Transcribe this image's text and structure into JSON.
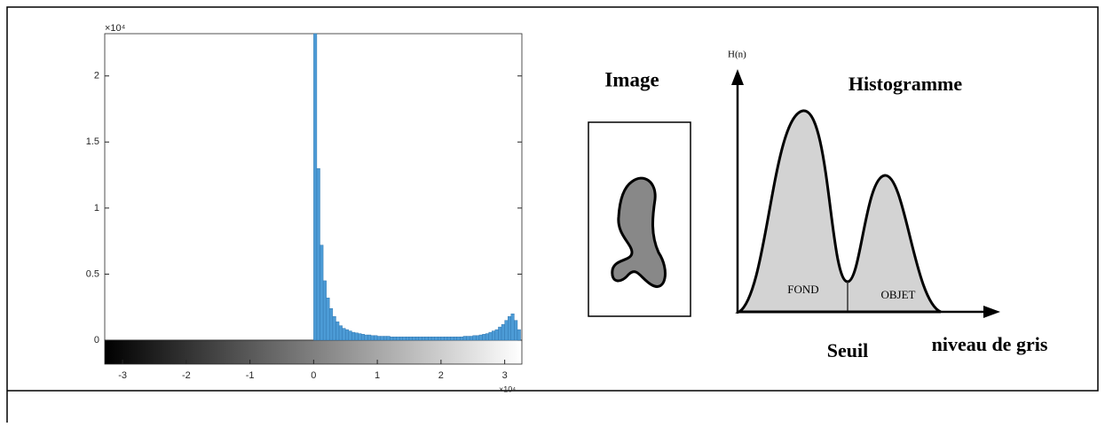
{
  "chart_data": {
    "type": "histogram",
    "bins": [
      0,
      0.05,
      0.1,
      0.15,
      0.2,
      0.25,
      0.3,
      0.35,
      0.4,
      0.45,
      0.5,
      0.55,
      0.6,
      0.65,
      0.7,
      0.75,
      0.8,
      0.85,
      0.9,
      0.95,
      1,
      1.05,
      1.1,
      1.15,
      1.2,
      1.25,
      1.3,
      1.35,
      1.4,
      1.45,
      1.5,
      1.55,
      1.6,
      1.65,
      1.7,
      1.75,
      1.8,
      1.85,
      1.9,
      1.95,
      2,
      2.05,
      2.1,
      2.15,
      2.2,
      2.25,
      2.3,
      2.35,
      2.4,
      2.45,
      2.5,
      2.55,
      2.6,
      2.65,
      2.7,
      2.75,
      2.8,
      2.85,
      2.9,
      2.95,
      3,
      3.05,
      3.1,
      3.15,
      3.2,
      3.25
    ],
    "values": [
      2.32,
      1.3,
      0.72,
      0.45,
      0.32,
      0.24,
      0.18,
      0.14,
      0.11,
      0.09,
      0.08,
      0.07,
      0.06,
      0.055,
      0.05,
      0.045,
      0.04,
      0.04,
      0.035,
      0.035,
      0.03,
      0.03,
      0.03,
      0.03,
      0.025,
      0.025,
      0.025,
      0.025,
      0.025,
      0.025,
      0.025,
      0.025,
      0.025,
      0.025,
      0.025,
      0.025,
      0.025,
      0.025,
      0.025,
      0.025,
      0.025,
      0.025,
      0.025,
      0.025,
      0.025,
      0.025,
      0.025,
      0.03,
      0.03,
      0.03,
      0.035,
      0.035,
      0.04,
      0.045,
      0.05,
      0.06,
      0.07,
      0.08,
      0.1,
      0.12,
      0.15,
      0.18,
      0.2,
      0.15,
      0.08
    ],
    "color": "#4c9bd6",
    "xlim": [
      -3.28,
      3.27
    ],
    "xticks": [
      -3,
      -2,
      -1,
      0,
      1,
      2,
      3
    ],
    "ylim": [
      0,
      2.32
    ],
    "yticks": [
      0,
      0.5,
      1,
      1.5,
      2
    ],
    "x_scale_label": "×10⁴",
    "y_scale_label": "×10⁴"
  },
  "diagram": {
    "image_label": "Image",
    "y_axis_label": "H(n)",
    "title": "Histogramme",
    "regions": [
      "FOND",
      "OBJET"
    ],
    "threshold_label": "Seuil",
    "x_axis_label": "niveau de gris"
  }
}
